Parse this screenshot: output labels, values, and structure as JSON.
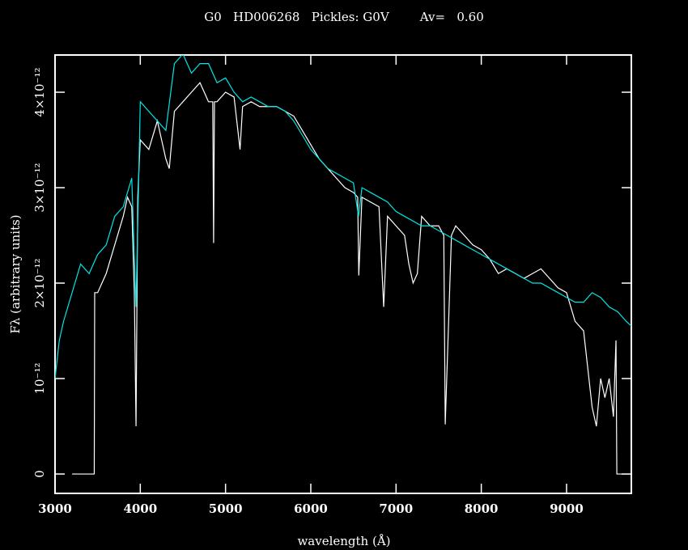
{
  "chart_data": {
    "type": "line",
    "title": "G0   HD006268   Pickles: G0V        Av=   0.60",
    "xlabel": "wavelength (Å)",
    "ylabel": "Fλ (arbitrary units)",
    "xlim": [
      3000,
      9760
    ],
    "ylim": [
      -2.03e-13,
      4.39e-12
    ],
    "xticks": [
      3000,
      4000,
      5000,
      6000,
      7000,
      8000,
      9000
    ],
    "yticks": [
      0,
      {
        "value": 1e-12,
        "label": "10⁻¹²"
      },
      {
        "value": 2e-12,
        "label": "2×10⁻¹²"
      },
      {
        "value": 3e-12,
        "label": "3×10⁻¹²"
      },
      {
        "value": 4e-12,
        "label": "4×10⁻¹²"
      }
    ],
    "series": [
      {
        "color": "#ffffff",
        "x": [
          3200,
          3460,
          3465,
          3500,
          3600,
          3700,
          3800,
          3850,
          3900,
          3930,
          3950,
          3970,
          4000,
          4100,
          4200,
          4300,
          4340,
          4400,
          4500,
          4600,
          4700,
          4750,
          4800,
          4850,
          4860,
          4870,
          4900,
          5000,
          5100,
          5170,
          5200,
          5300,
          5400,
          5500,
          5600,
          5700,
          5800,
          5900,
          6000,
          6100,
          6200,
          6300,
          6400,
          6500,
          6550,
          6563,
          6600,
          6700,
          6800,
          6855,
          6900,
          7000,
          7100,
          7150,
          7200,
          7250,
          7300,
          7400,
          7500,
          7560,
          7577,
          7650,
          7700,
          7800,
          7900,
          8000,
          8100,
          8200,
          8300,
          8400,
          8500,
          8600,
          8700,
          8800,
          8900,
          9000,
          9100,
          9200,
          9300,
          9350,
          9400,
          9450,
          9500,
          9550,
          9580,
          9590,
          9760
        ],
        "values": [
          0,
          0,
          1.9e-12,
          1.9e-12,
          2.1e-12,
          2.4e-12,
          2.7e-12,
          2.9e-12,
          2.8e-12,
          1.9e-12,
          5e-13,
          2.9e-12,
          3.5e-12,
          3.4e-12,
          3.7e-12,
          3.3e-12,
          3.2e-12,
          3.8e-12,
          3.9e-12,
          4e-12,
          4.1e-12,
          4e-12,
          3.9e-12,
          3.9e-12,
          2.42e-12,
          3.9e-12,
          3.9e-12,
          4e-12,
          3.95e-12,
          3.4e-12,
          3.85e-12,
          3.9e-12,
          3.85e-12,
          3.85e-12,
          3.85e-12,
          3.8e-12,
          3.75e-12,
          3.6e-12,
          3.45e-12,
          3.3e-12,
          3.2e-12,
          3.1e-12,
          3e-12,
          2.95e-12,
          2.9e-12,
          2.08e-12,
          2.9e-12,
          2.85e-12,
          2.8e-12,
          1.75e-12,
          2.7e-12,
          2.6e-12,
          2.5e-12,
          2.2e-12,
          2e-12,
          2.1e-12,
          2.7e-12,
          2.6e-12,
          2.6e-12,
          2.5e-12,
          5.2e-13,
          2.5e-12,
          2.6e-12,
          2.5e-12,
          2.4e-12,
          2.35e-12,
          2.25e-12,
          2.1e-12,
          2.15e-12,
          2.1e-12,
          2.05e-12,
          2.1e-12,
          2.15e-12,
          2.05e-12,
          1.95e-12,
          1.9e-12,
          1.6e-12,
          1.5e-12,
          7e-13,
          5e-13,
          1e-12,
          8e-13,
          1e-12,
          6e-13,
          1.4e-12,
          0,
          0
        ]
      },
      {
        "color": "#00e5e5",
        "x": [
          3000,
          3050,
          3100,
          3200,
          3300,
          3400,
          3500,
          3600,
          3700,
          3800,
          3900,
          3950,
          4000,
          4100,
          4200,
          4300,
          4400,
          4500,
          4600,
          4700,
          4800,
          4900,
          5000,
          5100,
          5200,
          5300,
          5400,
          5500,
          5600,
          5700,
          5800,
          5900,
          6000,
          6100,
          6200,
          6300,
          6400,
          6500,
          6560,
          6600,
          6700,
          6800,
          6900,
          7000,
          7100,
          7200,
          7300,
          7400,
          7500,
          7600,
          7700,
          7800,
          7900,
          8000,
          8100,
          8200,
          8300,
          8400,
          8500,
          8600,
          8700,
          8800,
          8900,
          9000,
          9100,
          9200,
          9300,
          9400,
          9500,
          9600,
          9700,
          9760
        ],
        "values": [
          1e-12,
          1.4e-12,
          1.6e-12,
          1.9e-12,
          2.2e-12,
          2.1e-12,
          2.3e-12,
          2.4e-12,
          2.7e-12,
          2.8e-12,
          3.1e-12,
          1.75e-12,
          3.9e-12,
          3.8e-12,
          3.7e-12,
          3.6e-12,
          4.3e-12,
          4.4e-12,
          4.2e-12,
          4.3e-12,
          4.3e-12,
          4.1e-12,
          4.15e-12,
          4e-12,
          3.9e-12,
          3.95e-12,
          3.9e-12,
          3.85e-12,
          3.85e-12,
          3.8e-12,
          3.7e-12,
          3.55e-12,
          3.4e-12,
          3.3e-12,
          3.2e-12,
          3.15e-12,
          3.1e-12,
          3.05e-12,
          2.7e-12,
          3e-12,
          2.95e-12,
          2.9e-12,
          2.85e-12,
          2.75e-12,
          2.7e-12,
          2.65e-12,
          2.6e-12,
          2.6e-12,
          2.55e-12,
          2.5e-12,
          2.45e-12,
          2.4e-12,
          2.35e-12,
          2.3e-12,
          2.25e-12,
          2.2e-12,
          2.15e-12,
          2.1e-12,
          2.05e-12,
          2e-12,
          2e-12,
          1.95e-12,
          1.9e-12,
          1.85e-12,
          1.8e-12,
          1.8e-12,
          1.9e-12,
          1.85e-12,
          1.75e-12,
          1.7e-12,
          1.6e-12,
          1.55e-12
        ]
      }
    ]
  }
}
